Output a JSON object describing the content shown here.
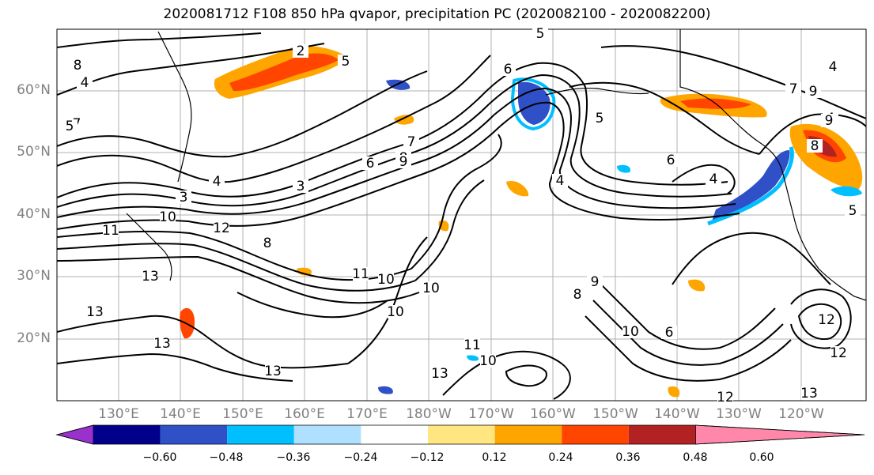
{
  "title": "2020081712 F108 850 hPa qvapor, precipitation PC (2020082100 - 2020082200)",
  "map": {
    "lat_labels": [
      "60°N",
      "50°N",
      "40°N",
      "30°N",
      "20°N"
    ],
    "lon_labels": [
      "130°E",
      "140°E",
      "150°E",
      "160°E",
      "170°E",
      "180°W",
      "170°W",
      "160°W",
      "150°W",
      "140°W",
      "130°W",
      "120°W"
    ],
    "contour_labels": [
      "2",
      "5",
      "5",
      "4",
      "6",
      "8",
      "9",
      "7",
      "5",
      "4",
      "6",
      "7",
      "9",
      "8",
      "4",
      "3",
      "4",
      "6",
      "8",
      "3",
      "9",
      "7",
      "4",
      "5",
      "4",
      "10",
      "11",
      "12",
      "8",
      "13",
      "13",
      "13",
      "13",
      "10",
      "10",
      "11",
      "11",
      "10",
      "10",
      "9",
      "8",
      "6",
      "10",
      "12",
      "12",
      "13",
      "13",
      "12",
      "5"
    ],
    "grid": true,
    "contour_color": "#000000"
  },
  "colorbar": {
    "tick_labels": [
      "−0.60",
      "−0.48",
      "−0.36",
      "−0.24",
      "−0.12",
      "0.12",
      "0.24",
      "0.36",
      "0.48",
      "0.60"
    ],
    "colors": [
      "#9932cc",
      "#00008b",
      "#3050c8",
      "#00bfff",
      "#afe0ff",
      "#ffffff",
      "#ffe680",
      "#ffa500",
      "#ff4500",
      "#b22222",
      "#ff88aa"
    ],
    "extend": "both"
  }
}
